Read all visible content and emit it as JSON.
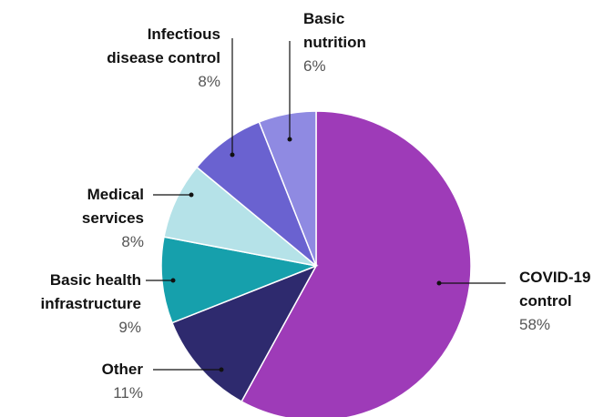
{
  "chart_data": {
    "type": "pie",
    "categories": [
      "COVID-19\ncontrol",
      "Other",
      "Basic health\ninfrastructure",
      "Medical\nservices",
      "Infectious\ndisease control",
      "Basic\nnutrition"
    ],
    "values": [
      58,
      11,
      9,
      8,
      8,
      6
    ],
    "value_labels": [
      "58%",
      "11%",
      "9%",
      "8%",
      "8%",
      "6%"
    ],
    "colors": [
      "#9e3bb8",
      "#2e2a6e",
      "#16a0ac",
      "#b5e2e8",
      "#6a62d0",
      "#8f8ae2"
    ]
  }
}
